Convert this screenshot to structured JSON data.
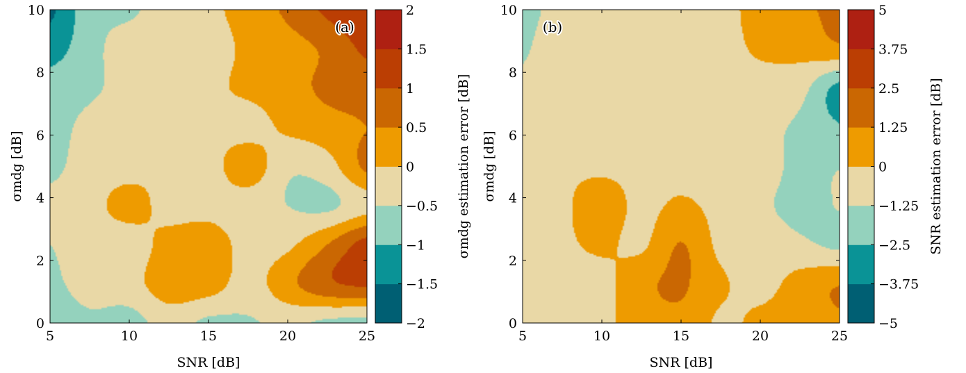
{
  "palette": {
    "dark_teal": "#005f73",
    "teal": "#0a9396",
    "mint": "#94d2bd",
    "sand": "#e9d8a6",
    "orange": "#ee9b00",
    "dark_orange": "#ca6702",
    "rust": "#bb3e03",
    "red": "#ae2012"
  },
  "chart_data": [
    {
      "type": "heatmap",
      "subtype": "filled-contour",
      "panel_label": "(a)",
      "xlabel": "SNR [dB]",
      "ylabel": "σmdg [dB]",
      "xlim": [
        5,
        25
      ],
      "ylim": [
        0,
        10
      ],
      "x_ticks": [
        "5",
        "10",
        "15",
        "20",
        "25"
      ],
      "y_ticks": [
        "0",
        "2",
        "4",
        "6",
        "8",
        "10"
      ],
      "colorbar": {
        "label": "σmdg estimation error [dB]",
        "levels": [
          -2,
          -1.5,
          -1,
          -0.5,
          0,
          0.5,
          1,
          1.5,
          2
        ],
        "tick_labels": [
          "−2",
          "−1.5",
          "−1",
          "−0.5",
          "0",
          "0.5",
          "1",
          "1.5",
          "2"
        ]
      },
      "x": [
        5,
        7.5,
        10,
        12.5,
        15,
        17.5,
        20,
        22.5,
        25
      ],
      "y": [
        0,
        1.25,
        2.5,
        3.75,
        5,
        6.25,
        7.5,
        8.75,
        10
      ],
      "z": [
        [
          -0.8,
          -0.6,
          -0.7,
          -0.3,
          -0.6,
          -0.55,
          -0.4,
          -0.6,
          -0.7
        ],
        [
          -0.6,
          -0.3,
          -0.2,
          0.3,
          0.25,
          -0.2,
          0.35,
          0.9,
          1.1
        ],
        [
          -0.5,
          -0.3,
          -0.3,
          0.2,
          0.3,
          -0.2,
          -0.1,
          0.5,
          1.2
        ],
        [
          -0.4,
          -0.2,
          0.2,
          -0.2,
          -0.2,
          -0.3,
          -0.5,
          -0.6,
          -0.2
        ],
        [
          -0.6,
          -0.3,
          -0.2,
          -0.1,
          -0.2,
          0.3,
          -0.4,
          -0.2,
          0.6
        ],
        [
          -0.7,
          -0.35,
          -0.2,
          -0.2,
          -0.1,
          -0.2,
          0.1,
          0.3,
          0.5
        ],
        [
          -0.8,
          -0.6,
          -0.3,
          -0.2,
          -0.1,
          0.1,
          0.3,
          0.6,
          0.7
        ],
        [
          -1.2,
          -0.7,
          -0.2,
          -0.2,
          -0.2,
          0.1,
          0.3,
          0.6,
          1.1
        ],
        [
          -1.6,
          -0.7,
          -0.6,
          -0.2,
          -0.1,
          0.2,
          0.6,
          1.1,
          1.4
        ]
      ]
    },
    {
      "type": "heatmap",
      "subtype": "filled-contour",
      "panel_label": "(b)",
      "xlabel": "SNR [dB]",
      "ylabel": "σmdg [dB]",
      "xlim": [
        5,
        25
      ],
      "ylim": [
        0,
        10
      ],
      "x_ticks": [
        "5",
        "10",
        "15",
        "20",
        "25"
      ],
      "y_ticks": [
        "0",
        "2",
        "4",
        "6",
        "8",
        "10"
      ],
      "colorbar": {
        "label": "SNR estimation error [dB]",
        "levels": [
          -5,
          -3.75,
          -2.5,
          -1.25,
          0,
          1.25,
          2.5,
          3.75,
          5
        ],
        "tick_labels": [
          "−5",
          "−3.75",
          "−2.5",
          "−1.25",
          "0",
          "1.25",
          "2.5",
          "3.75",
          "5"
        ]
      },
      "x": [
        5,
        7.5,
        10,
        12.5,
        15,
        17.5,
        20,
        22.5,
        25
      ],
      "y": [
        0,
        1.25,
        2.5,
        3.75,
        5,
        6.25,
        7.5,
        8.75,
        10
      ],
      "z": [
        [
          -0.4,
          -0.5,
          -0.3,
          0.6,
          1.0,
          -0.2,
          0.3,
          0.6,
          1.1
        ],
        [
          -0.3,
          -0.4,
          -0.4,
          0.9,
          1.4,
          0.2,
          -0.4,
          0.5,
          1.2
        ],
        [
          -0.3,
          -0.2,
          0.2,
          -0.2,
          1.3,
          -0.3,
          -0.6,
          -1.0,
          -1.5
        ],
        [
          -0.4,
          -0.2,
          0.6,
          -0.3,
          0.2,
          -0.4,
          -1.0,
          -1.6,
          -1.2
        ],
        [
          -0.5,
          -0.2,
          -0.2,
          -0.3,
          -0.4,
          -0.4,
          -0.6,
          -1.6,
          -1.3
        ],
        [
          -0.8,
          -0.3,
          -0.2,
          -0.3,
          -0.4,
          -0.5,
          -0.8,
          -1.5,
          -2.4
        ],
        [
          -1.0,
          -0.4,
          -0.3,
          -0.2,
          -0.2,
          -0.2,
          -0.3,
          -0.8,
          -2.9
        ],
        [
          -1.4,
          -0.4,
          -0.2,
          -0.2,
          -0.3,
          -0.2,
          0.1,
          0.4,
          1.0
        ],
        [
          -1.6,
          -0.8,
          -0.4,
          -0.3,
          -0.2,
          -0.2,
          0.3,
          1.0,
          1.5
        ]
      ]
    }
  ]
}
